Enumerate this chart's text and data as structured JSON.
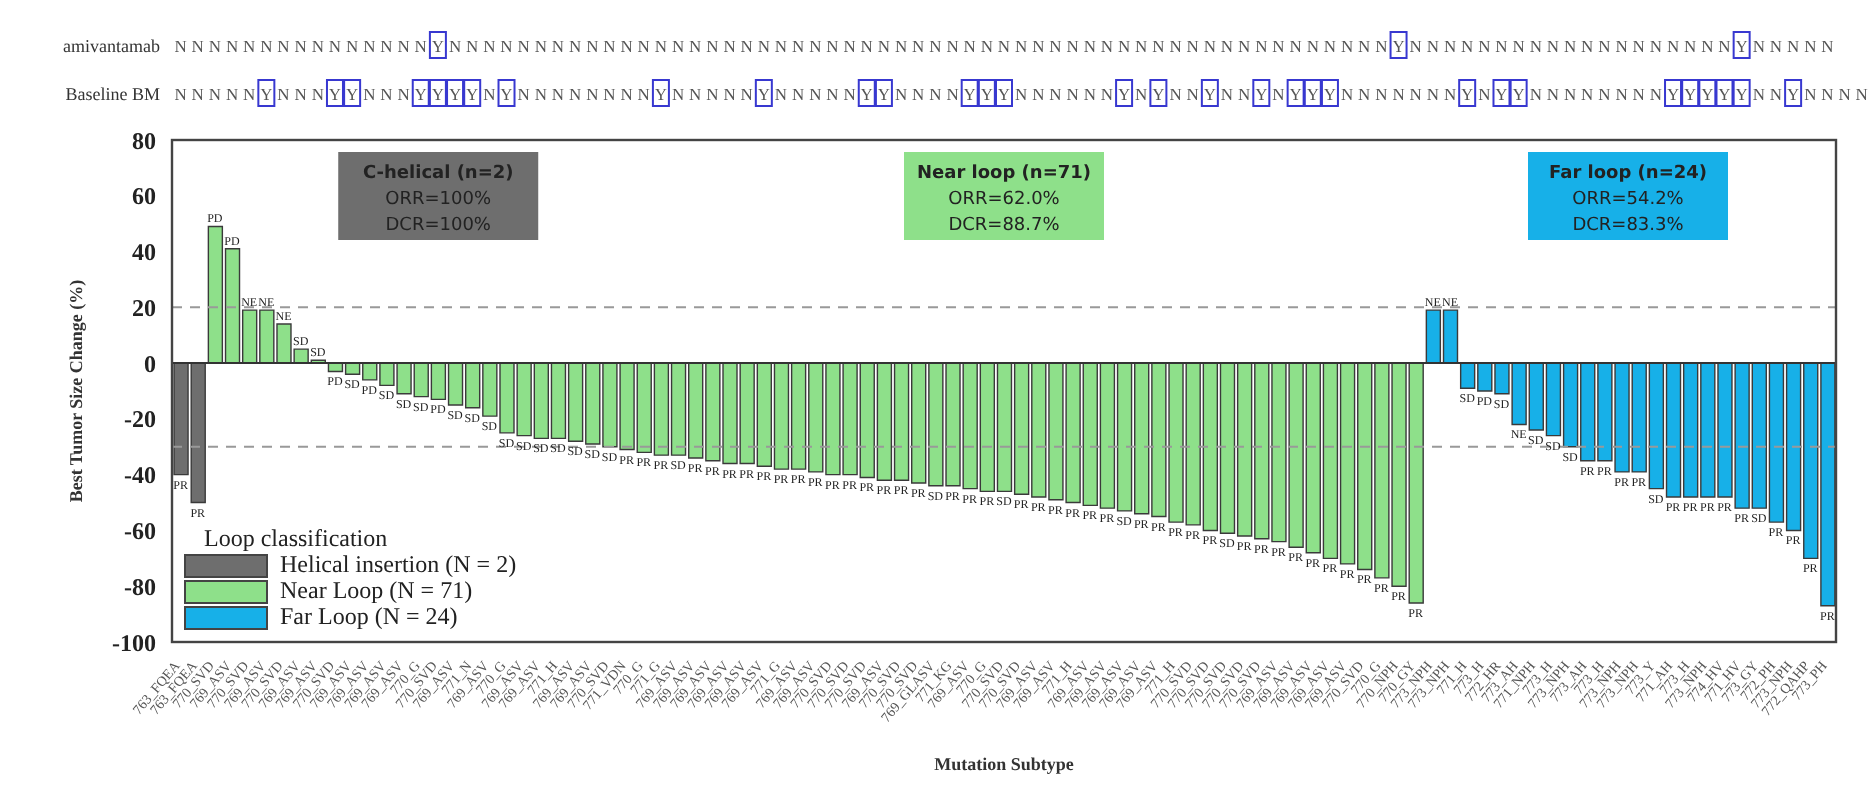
{
  "chart_data": {
    "type": "bar",
    "stacked": true,
    "ylabel": "Best Tumor Size Change (%)",
    "xlabel": "Mutation Subtype",
    "legend_title": "Loop classification",
    "legend": "bottom left",
    "ylim": [
      -100,
      80
    ],
    "yticks": [
      -100,
      -80,
      -60,
      -40,
      -20,
      0,
      20,
      40,
      60,
      80
    ],
    "ref_lines": [
      {
        "axis": "y",
        "value": 0,
        "line_style": "solid",
        "color": "#333333"
      },
      {
        "axis": "y",
        "value": 20,
        "line_style": "dashed",
        "color": "#999999"
      },
      {
        "axis": "y",
        "value": -30,
        "line_style": "dashed",
        "color": "#999999"
      }
    ],
    "annotations": [
      "amivantamab",
      "NNNNNNNNNNNNNNNYNNNNNNNNNNNNNNNNNNNNNNNNNNNNNNNNNNNNNNNNNNNNNNNNNNNNNNNYNNNNNNNNNNNNNNNNNNNYNNNNN",
      "Baseline BM",
      "NNNNNYNNNYYNNNYYYYNYNNNNNNNNYNNNNNYNNNNNYYNNNNYYYNNNNNNYNYNNYNNYNYYYNNNNNNNYNYYNNNNNNNNYYYYYNNYNNNN",
      "C-helical (n=2)",
      "ORR=100%",
      "DCR=100%",
      "Near loop (n=71)",
      "ORR=62.0%",
      "DCR=88.7%",
      "Far loop (n=24)",
      "ORR=54.2%",
      "DCR=83.3%"
    ],
    "categories": [
      "763_FQEA",
      "763_FQEA",
      "770_SVD",
      "769_ASV",
      "770_SVD",
      "769_ASV",
      "770_SVD",
      "769_ASV",
      "769_ASV",
      "770_SVD",
      "769_ASV",
      "769_ASV",
      "769_ASV",
      "769_ASV",
      "770_G",
      "770_SVD",
      "769_ASV",
      "771_N",
      "769_ASV",
      "770_G",
      "769_ASV",
      "769_ASV",
      "771_H",
      "769_ASV",
      "769_ASV",
      "770_SVD",
      "771_VDN",
      "770_G",
      "771_G",
      "769_ASV",
      "769_ASV",
      "769_ASV",
      "769_ASV",
      "769_ASV",
      "769_ASV",
      "771_G",
      "769_ASV",
      "769_ASV",
      "770_SVD",
      "770_SVD",
      "770_SVD",
      "769_ASV",
      "770_SVD",
      "770_SVD",
      "769_GLASV",
      "771_KG",
      "769_ASV",
      "770_G",
      "770_SVD",
      "770_SVD",
      "769_ASV",
      "769_ASV",
      "771_H",
      "769_ASV",
      "769_ASV",
      "769_ASV",
      "769_ASV",
      "769_ASV",
      "771_H",
      "770_SVD",
      "770_SVD",
      "770_SVD",
      "770_SVD",
      "770_SVD",
      "769_ASV",
      "769_ASV",
      "769_ASV",
      "769_ASV",
      "769_ASV",
      "770_SVD",
      "770_G",
      "770_NPH",
      "770_GY",
      "773_NPH",
      "773_NPH",
      "771_H",
      "773_H",
      "772_HR",
      "773_AH",
      "771_NPH",
      "773_H",
      "773_NPH",
      "773_AH",
      "773_H",
      "773_NPH",
      "773_NPH",
      "773_Y",
      "771_AH",
      "773_H",
      "773_NPH",
      "774_HV",
      "771_HV",
      "773_GY",
      "772_PH",
      "773_NPH",
      "772_QAHP",
      "773_PH"
    ],
    "series": [
      {
        "name": "Helical insertion (N = 2)",
        "color": "#6e6e6e",
        "values": [
          -40,
          -50,
          null,
          null,
          null,
          null,
          null,
          null,
          null,
          null,
          null,
          null,
          null,
          null,
          null,
          null,
          null,
          null,
          null,
          null,
          null,
          null,
          null,
          null,
          null,
          null,
          null,
          null,
          null,
          null,
          null,
          null,
          null,
          null,
          null,
          null,
          null,
          null,
          null,
          null,
          null,
          null,
          null,
          null,
          null,
          null,
          null,
          null,
          null,
          null,
          null,
          null,
          null,
          null,
          null,
          null,
          null,
          null,
          null,
          null,
          null,
          null,
          null,
          null,
          null,
          null,
          null,
          null,
          null,
          null,
          null,
          null,
          null,
          null,
          null,
          null,
          null,
          null,
          null,
          null,
          null,
          null,
          null,
          null,
          null,
          null,
          null,
          null,
          null,
          null,
          null,
          null,
          null,
          null,
          null,
          null,
          null
        ],
        "value_labels": [
          "PR",
          "PR",
          null,
          null,
          null,
          null,
          null,
          null,
          null,
          null,
          null,
          null,
          null,
          null,
          null,
          null,
          null,
          null,
          null,
          null,
          null,
          null,
          null,
          null,
          null,
          null,
          null,
          null,
          null,
          null,
          null,
          null,
          null,
          null,
          null,
          null,
          null,
          null,
          null,
          null,
          null,
          null,
          null,
          null,
          null,
          null,
          null,
          null,
          null,
          null,
          null,
          null,
          null,
          null,
          null,
          null,
          null,
          null,
          null,
          null,
          null,
          null,
          null,
          null,
          null,
          null,
          null,
          null,
          null,
          null,
          null,
          null,
          null,
          null,
          null,
          null,
          null,
          null,
          null,
          null,
          null,
          null,
          null,
          null,
          null,
          null,
          null,
          null,
          null,
          null,
          null,
          null,
          null,
          null,
          null,
          null,
          null
        ]
      },
      {
        "name": "Near Loop (N = 71)",
        "color": "#8ee08a",
        "values": [
          null,
          null,
          49,
          41,
          19,
          19,
          14,
          5,
          1,
          -3,
          -4,
          -6,
          -8,
          -11,
          -12,
          -13,
          -15,
          -16,
          -19,
          -25,
          -26,
          -27,
          -27,
          -28,
          -29,
          -30,
          -31,
          -32,
          -33,
          -33,
          -34,
          -35,
          -36,
          -36,
          -37,
          -38,
          -38,
          -39,
          -40,
          -40,
          -41,
          -42,
          -42,
          -43,
          -44,
          -44,
          -45,
          -46,
          -46,
          -47,
          -48,
          -49,
          -50,
          -51,
          -52,
          -53,
          -54,
          -55,
          -57,
          -58,
          -60,
          -61,
          -62,
          -63,
          -64,
          -66,
          -68,
          -70,
          -72,
          -74,
          -77,
          -80,
          -86,
          null,
          null,
          null,
          null,
          null,
          null,
          null,
          null,
          null,
          null,
          null,
          null,
          null,
          null,
          null,
          null,
          null,
          null,
          null,
          null,
          null,
          null,
          null,
          null
        ],
        "value_labels": [
          null,
          null,
          "PD",
          "PD",
          "NE",
          "NE",
          "NE",
          "SD",
          "SD",
          "PD",
          "SD",
          "PD",
          "SD",
          "SD",
          "SD",
          "PD",
          "SD",
          "SD",
          "SD",
          "SD",
          "SD",
          "SD",
          "SD",
          "SD",
          "SD",
          "SD",
          "PR",
          "PR",
          "PR",
          "SD",
          "PR",
          "PR",
          "PR",
          "PR",
          "PR",
          "PR",
          "PR",
          "PR",
          "PR",
          "PR",
          "PR",
          "PR",
          "PR",
          "PR",
          "SD",
          "PR",
          "PR",
          "PR",
          "SD",
          "PR",
          "PR",
          "PR",
          "PR",
          "PR",
          "PR",
          "SD",
          "PR",
          "PR",
          "PR",
          "PR",
          "PR",
          "SD",
          "PR",
          "PR",
          "PR",
          "PR",
          "PR",
          "PR",
          "PR",
          "PR",
          "PR",
          "PR",
          "PR",
          null,
          null,
          null,
          null,
          null,
          null,
          null,
          null,
          null,
          null,
          null,
          null,
          null,
          null,
          null,
          null,
          null,
          null,
          null,
          null,
          null,
          null,
          null,
          null
        ]
      },
      {
        "name": "Far Loop (N = 24)",
        "color": "#17b0e8",
        "values": [
          null,
          null,
          null,
          null,
          null,
          null,
          null,
          null,
          null,
          null,
          null,
          null,
          null,
          null,
          null,
          null,
          null,
          null,
          null,
          null,
          null,
          null,
          null,
          null,
          null,
          null,
          null,
          null,
          null,
          null,
          null,
          null,
          null,
          null,
          null,
          null,
          null,
          null,
          null,
          null,
          null,
          null,
          null,
          null,
          null,
          null,
          null,
          null,
          null,
          null,
          null,
          null,
          null,
          null,
          null,
          null,
          null,
          null,
          null,
          null,
          null,
          null,
          null,
          null,
          null,
          null,
          null,
          null,
          null,
          null,
          null,
          null,
          null,
          19,
          19,
          -9,
          -10,
          -11,
          -22,
          -24,
          -26,
          -30,
          -35,
          -35,
          -39,
          -39,
          -45,
          -48,
          -48,
          -48,
          -48,
          -52,
          -52,
          -57,
          -60,
          -70,
          -87
        ],
        "value_labels": [
          null,
          null,
          null,
          null,
          null,
          null,
          null,
          null,
          null,
          null,
          null,
          null,
          null,
          null,
          null,
          null,
          null,
          null,
          null,
          null,
          null,
          null,
          null,
          null,
          null,
          null,
          null,
          null,
          null,
          null,
          null,
          null,
          null,
          null,
          null,
          null,
          null,
          null,
          null,
          null,
          null,
          null,
          null,
          null,
          null,
          null,
          null,
          null,
          null,
          null,
          null,
          null,
          null,
          null,
          null,
          null,
          null,
          null,
          null,
          null,
          null,
          null,
          null,
          null,
          null,
          null,
          null,
          null,
          null,
          null,
          null,
          null,
          null,
          "NE",
          "NE",
          "SD",
          "PD",
          "SD",
          "NE",
          "SD",
          "SD",
          "SD",
          "PR",
          "PR",
          "PR",
          "PR",
          "SD",
          "PR",
          "PR",
          "PR",
          "PR",
          "PR",
          "SD",
          "PR",
          "PR",
          "PR",
          "PR"
        ]
      }
    ]
  }
}
